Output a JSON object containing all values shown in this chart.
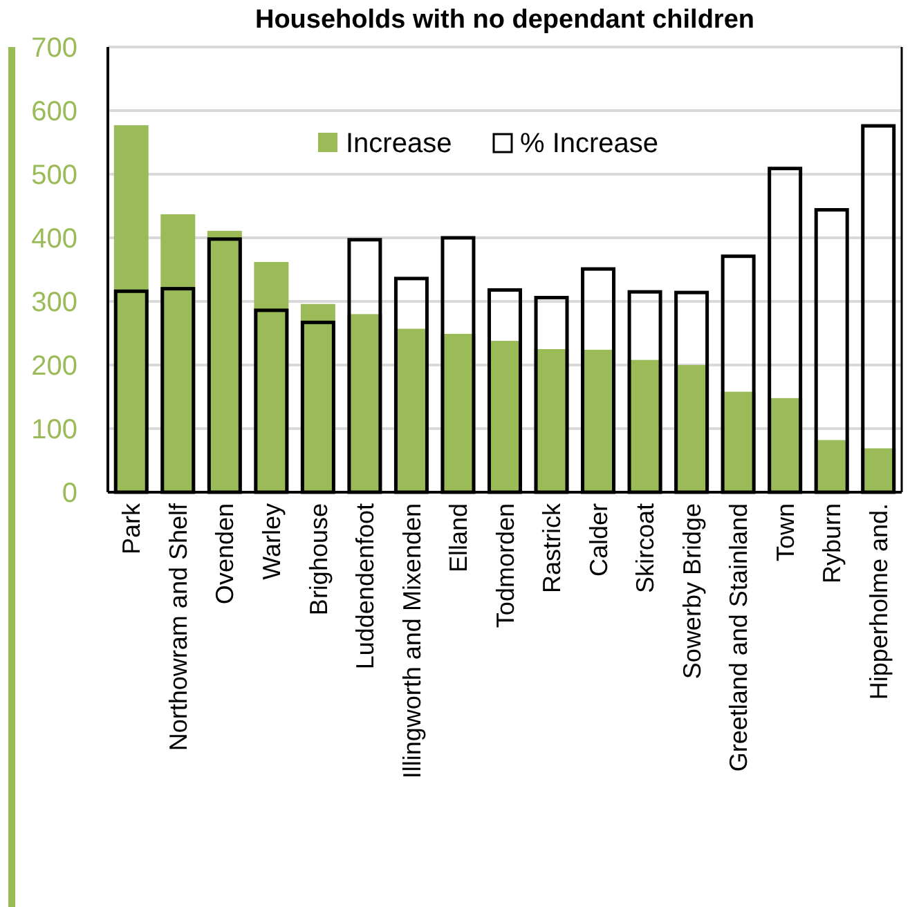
{
  "chart_data": {
    "type": "bar",
    "title": "Households with no dependant children",
    "categories": [
      "Park",
      "Northowram and Shelf",
      "Ovenden",
      "Warley",
      "Brighouse",
      "Luddendenfoot",
      "Illingworth and Mixenden",
      "Elland",
      "Todmorden",
      "Rastrick",
      "Calder",
      "Skircoat",
      "Sowerby Bridge",
      "Greetland and Stainland",
      "Town",
      "Ryburn",
      "Hipperholme and."
    ],
    "series": [
      {
        "name": "Increase",
        "color": "#9bbb59",
        "values": [
          577,
          437,
          411,
          362,
          296,
          280,
          257,
          249,
          238,
          225,
          224,
          208,
          200,
          158,
          148,
          82,
          69
        ]
      },
      {
        "name": "% Increase",
        "color": "#000000",
        "values": [
          316,
          320,
          398,
          286,
          267,
          397,
          336,
          400,
          318,
          306,
          351,
          315,
          314,
          371,
          509,
          444,
          576
        ]
      }
    ],
    "ylim": [
      0,
      700
    ],
    "yticks": [
      0,
      100,
      200,
      300,
      400,
      500,
      600,
      700
    ],
    "grid": "y",
    "legend": "top right"
  }
}
